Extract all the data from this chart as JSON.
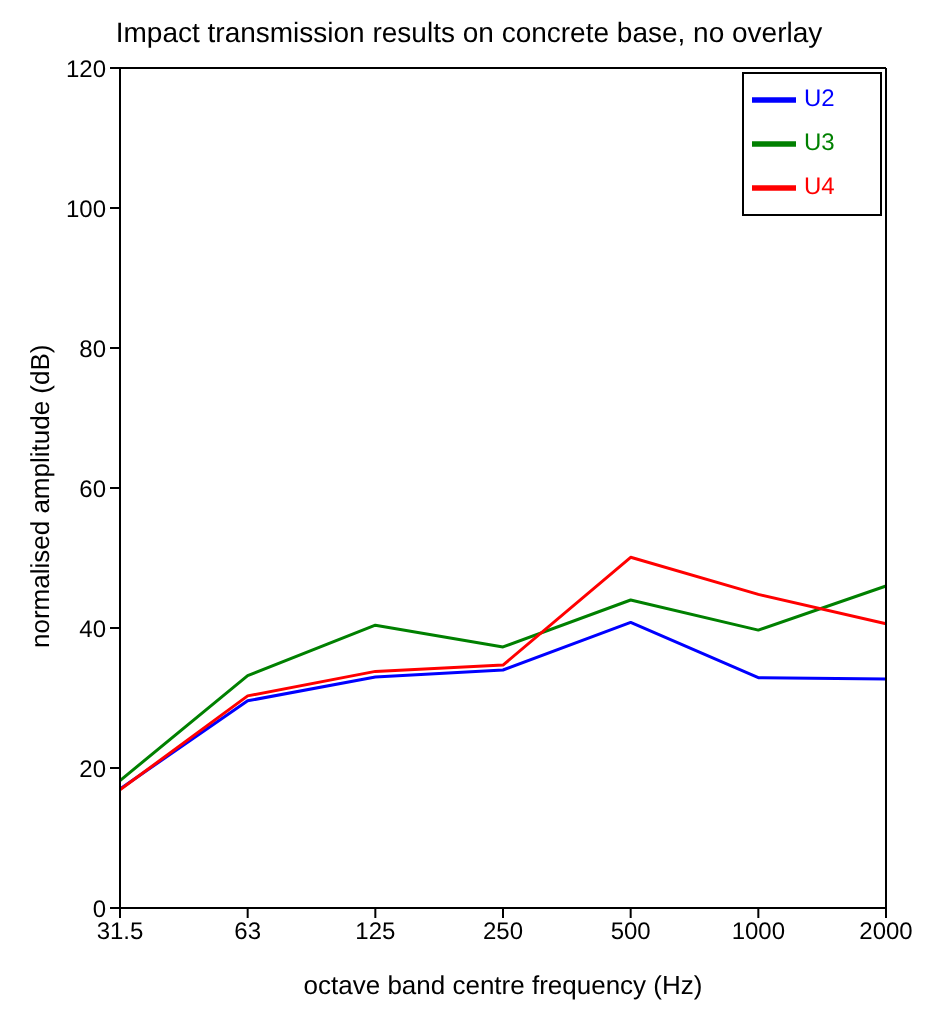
{
  "chart_data": {
    "type": "line",
    "title": "Impact transmission results on concrete base, no overlay",
    "xlabel": "octave band centre frequency (Hz)",
    "ylabel": "normalised amplitude (dB)",
    "categories": [
      "31.5",
      "63",
      "125",
      "250",
      "500",
      "1000",
      "2000"
    ],
    "series": [
      {
        "name": "U2",
        "color": "#0000ff",
        "values": [
          17,
          29.6,
          33,
          34,
          40.8,
          32.9,
          32.7
        ]
      },
      {
        "name": "U3",
        "color": "#008000",
        "values": [
          18.2,
          33.2,
          40.4,
          37.3,
          44,
          39.7,
          46
        ]
      },
      {
        "name": "U4",
        "color": "#ff0000",
        "values": [
          16.9,
          30.3,
          33.8,
          34.7,
          50.1,
          44.8,
          40.6
        ]
      }
    ],
    "ylim": [
      0,
      120
    ],
    "yticks": [
      0,
      20,
      40,
      60,
      80,
      100,
      120
    ],
    "legend": "top right",
    "marker": "none",
    "line_style": "solid"
  }
}
